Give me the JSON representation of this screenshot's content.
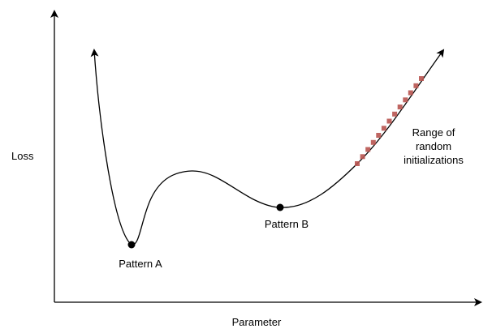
{
  "axes": {
    "y_label": "Loss",
    "x_label": "Parameter"
  },
  "curve": {
    "color": "#000000"
  },
  "points": {
    "pattern_a": "Pattern A",
    "pattern_b": "Pattern B"
  },
  "initializations": {
    "label_lines": [
      "Range of",
      "random",
      "initializations"
    ],
    "marker_color": "#b85450",
    "marker_count": 13
  }
}
